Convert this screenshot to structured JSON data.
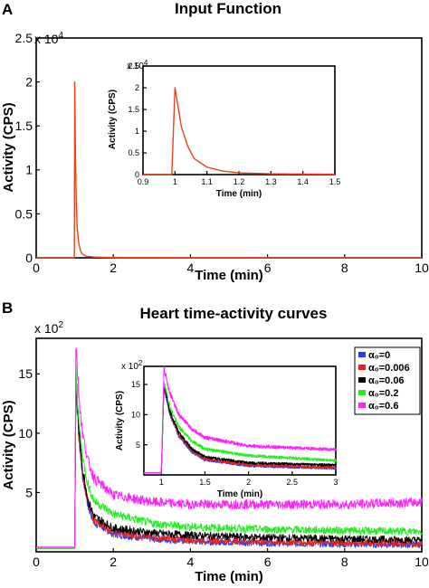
{
  "chart_data": [
    {
      "panel_label": "A",
      "type": "line",
      "title": "Input Function",
      "xlabel": "Time (min)",
      "ylabel": "Activity (CPS)",
      "y_multiplier": "x 10",
      "y_multiplier_exp": "4",
      "xlim": [
        0,
        10
      ],
      "ylim": [
        0,
        25000
      ],
      "x_ticks": [
        "0",
        "2",
        "4",
        "6",
        "8",
        "10"
      ],
      "y_ticks": [
        "0",
        "0.5",
        "1",
        "1.5",
        "2",
        "2.5"
      ],
      "series": [
        {
          "color": "#e8421e",
          "x": [
            0,
            0.99,
            1.0,
            1.01,
            1.02,
            1.04,
            1.06,
            1.1,
            1.15,
            1.2,
            1.3,
            1.5,
            2,
            4,
            6,
            8,
            10
          ],
          "values": [
            0,
            0,
            20000,
            15500,
            11000,
            6500,
            3700,
            1700,
            800,
            400,
            180,
            80,
            40,
            20,
            10,
            5,
            0
          ]
        }
      ],
      "inset": {
        "xlabel": "Time (min)",
        "ylabel": "Activity (CPS)",
        "y_multiplier": "x 10",
        "y_multiplier_exp": "4",
        "xlim": [
          0.9,
          1.5
        ],
        "ylim": [
          0,
          25000
        ],
        "x_ticks": [
          "0.9",
          "1",
          "1.1",
          "1.2",
          "1.3",
          "1.4",
          "1.5"
        ],
        "y_ticks": [
          "0",
          "0.5",
          "1",
          "1.5",
          "2",
          "2.5"
        ]
      }
    },
    {
      "panel_label": "B",
      "type": "line",
      "title": "Heart time-activity curves",
      "xlabel": "Time (min)",
      "ylabel": "Activity (CPS)",
      "y_multiplier": "x 10",
      "y_multiplier_exp": "2",
      "xlim": [
        0,
        10
      ],
      "ylim": [
        0,
        1800
      ],
      "x_ticks": [
        "0",
        "2",
        "4",
        "6",
        "8",
        "10"
      ],
      "y_ticks": [
        "5",
        "10",
        "15"
      ],
      "y_tick_values": [
        500,
        1000,
        1500
      ],
      "legend_position": "top-right",
      "series": [
        {
          "name": "α₀=0",
          "color": "#1f3cff",
          "x": [
            0,
            1.0,
            1.03,
            1.1,
            1.2,
            1.35,
            1.5,
            2,
            3,
            4,
            6,
            8,
            10
          ],
          "values": [
            30,
            30,
            1450,
            1000,
            650,
            380,
            250,
            150,
            110,
            90,
            75,
            65,
            60
          ]
        },
        {
          "name": "α₀=0.006",
          "color": "#e8221e",
          "x": [
            0,
            1.0,
            1.03,
            1.1,
            1.2,
            1.35,
            1.5,
            2,
            3,
            4,
            6,
            8,
            10
          ],
          "values": [
            30,
            30,
            1480,
            1020,
            670,
            400,
            265,
            165,
            120,
            100,
            85,
            75,
            70
          ]
        },
        {
          "name": "α₀=0.06",
          "color": "#000000",
          "x": [
            0,
            1.0,
            1.03,
            1.1,
            1.2,
            1.35,
            1.5,
            2,
            3,
            4,
            6,
            8,
            10
          ],
          "values": [
            30,
            30,
            1500,
            1050,
            700,
            430,
            300,
            200,
            160,
            140,
            120,
            110,
            100
          ]
        },
        {
          "name": "α₀=0.2",
          "color": "#22ee22",
          "x": [
            0,
            1.0,
            1.03,
            1.1,
            1.2,
            1.35,
            1.5,
            2,
            3,
            4,
            6,
            8,
            10
          ],
          "values": [
            30,
            30,
            1550,
            1120,
            800,
            560,
            430,
            320,
            240,
            210,
            190,
            180,
            170
          ]
        },
        {
          "name": "α₀=0.6",
          "color": "#ff22ff",
          "x": [
            0,
            1.0,
            1.03,
            1.1,
            1.2,
            1.35,
            1.5,
            2,
            3,
            4,
            6,
            8,
            10
          ],
          "values": [
            40,
            40,
            1760,
            1350,
            1000,
            760,
            620,
            480,
            420,
            400,
            400,
            400,
            420
          ]
        }
      ],
      "inset": {
        "xlabel": "Time (min)",
        "ylabel": "Activity (CPS)",
        "y_multiplier": "x 10",
        "y_multiplier_exp": "2",
        "xlim": [
          0.8,
          3
        ],
        "ylim": [
          0,
          1800
        ],
        "x_ticks": [
          "1",
          "1.5",
          "2",
          "2.5",
          "3"
        ],
        "x_tick_values": [
          1,
          1.5,
          2,
          2.5,
          3
        ],
        "y_ticks": [
          "5",
          "10",
          "15"
        ],
        "y_tick_values": [
          500,
          1000,
          1500
        ]
      }
    }
  ]
}
